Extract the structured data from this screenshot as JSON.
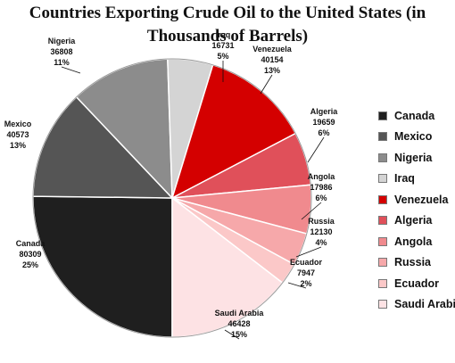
{
  "chart_data": {
    "type": "pie",
    "title_lines": [
      "Countries Exporting Crude Oil to the United States (in",
      "Thousands of Barrels)"
    ],
    "slices": [
      {
        "name": "Canada",
        "value": 80309,
        "percent": "25%",
        "color": "#1f1f1f"
      },
      {
        "name": "Mexico",
        "value": 40573,
        "percent": "13%",
        "color": "#555555"
      },
      {
        "name": "Nigeria",
        "value": 36808,
        "percent": "11%",
        "color": "#8c8c8c"
      },
      {
        "name": "Iraq",
        "value": 16731,
        "percent": "5%",
        "color": "#d4d4d4"
      },
      {
        "name": "Venezuela",
        "value": 40154,
        "percent": "13%",
        "color": "#d40000"
      },
      {
        "name": "Algeria",
        "value": 19659,
        "percent": "6%",
        "color": "#e0505a"
      },
      {
        "name": "Angola",
        "value": 17986,
        "percent": "6%",
        "color": "#f08a8e"
      },
      {
        "name": "Russia",
        "value": 12130,
        "percent": "4%",
        "color": "#f6a8aa"
      },
      {
        "name": "Ecuador",
        "value": 7947,
        "percent": "2%",
        "color": "#fbc8c8"
      },
      {
        "name": "Saudi Arabia",
        "value": 46428,
        "percent": "15%",
        "color": "#fde2e4"
      }
    ],
    "legend_position": "right"
  }
}
